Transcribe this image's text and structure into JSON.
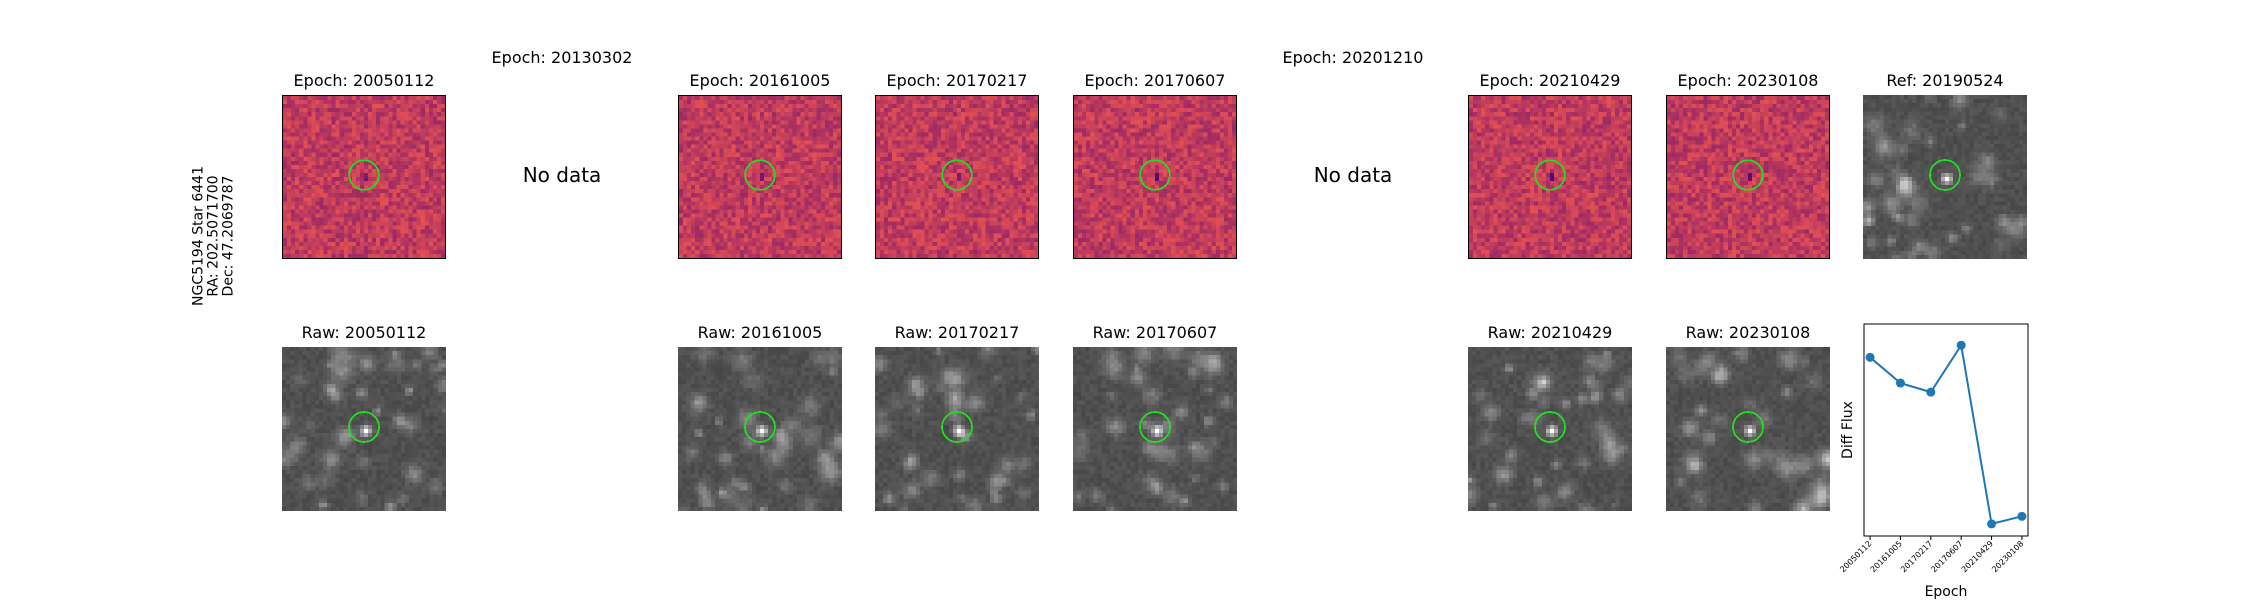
{
  "star": {
    "name": "NGC5194 Star 6441",
    "ra": "RA: 202.5071700",
    "dec": "Dec: 47.2069787"
  },
  "diff_panels": [
    {
      "title": "Epoch: 20050112",
      "has_data": true
    },
    {
      "title": "Epoch: 20130302",
      "has_data": false,
      "nodata_text": "No data"
    },
    {
      "title": "Epoch: 20161005",
      "has_data": true
    },
    {
      "title": "Epoch: 20170217",
      "has_data": true
    },
    {
      "title": "Epoch: 20170607",
      "has_data": true
    },
    {
      "title": "Epoch: 20201210",
      "has_data": false,
      "nodata_text": "No data"
    },
    {
      "title": "Epoch: 20210429",
      "has_data": true
    },
    {
      "title": "Epoch: 20230108",
      "has_data": true
    }
  ],
  "ref_panel": {
    "title": "Ref: 20190524"
  },
  "raw_panels": [
    {
      "title": "Raw: 20050112"
    },
    {
      "title": "Raw: 20161005"
    },
    {
      "title": "Raw: 20170217"
    },
    {
      "title": "Raw: 20170607"
    },
    {
      "title": "Raw: 20210429"
    },
    {
      "title": "Raw: 20230108"
    }
  ],
  "colors": {
    "aperture": "#22dd22",
    "series": "#1f77b4",
    "diff_base": "#b0407a",
    "raw_base": "#6a6a6a"
  },
  "chart_data": {
    "type": "line",
    "title": "",
    "xlabel": "Epoch",
    "ylabel": "Diff Flux",
    "categories": [
      "20050112",
      "20161005",
      "20170217",
      "20170607",
      "20210429",
      "20230108"
    ],
    "series": [
      {
        "values": [
          0.83,
          0.66,
          0.6,
          0.91,
          -0.27,
          -0.22
        ]
      }
    ],
    "ylim": [
      -0.35,
      1.05
    ],
    "grid": false,
    "legend": "none"
  }
}
